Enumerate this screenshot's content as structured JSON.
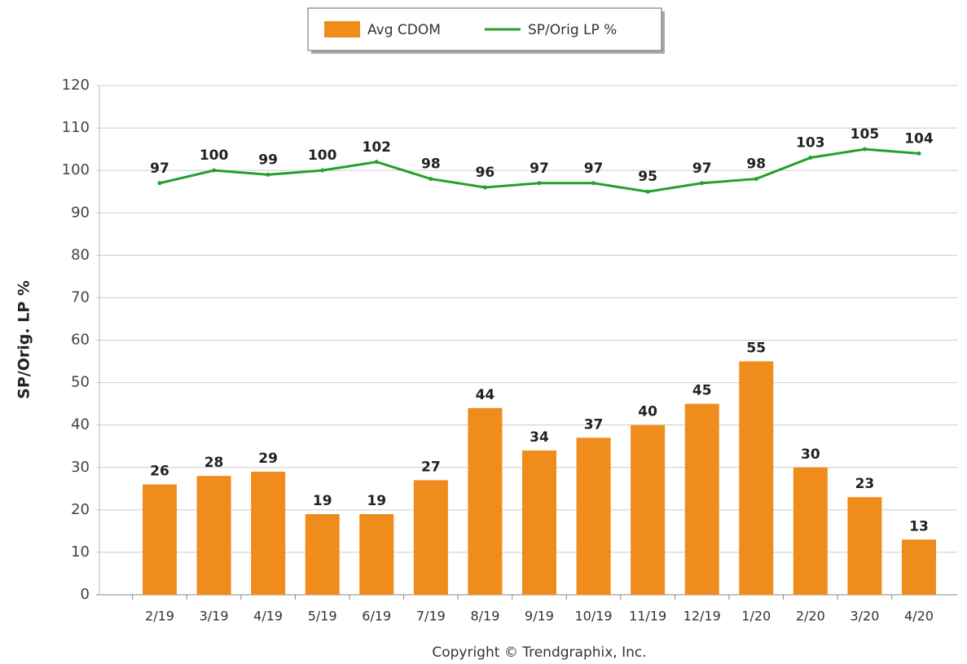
{
  "chart_data": {
    "type": "bar",
    "y_label": "SP/Orig. LP %",
    "footer": "Copyright © Trendgraphix, Inc.",
    "categories": [
      "2/19",
      "3/19",
      "4/19",
      "5/19",
      "6/19",
      "7/19",
      "8/19",
      "9/19",
      "10/19",
      "11/19",
      "12/19",
      "1/20",
      "2/20",
      "3/20",
      "4/20"
    ],
    "series": [
      {
        "name": "Avg CDOM",
        "type": "bar",
        "color": "#ef8c1c",
        "values": [
          26,
          28,
          29,
          19,
          19,
          27,
          44,
          34,
          37,
          40,
          45,
          55,
          30,
          23,
          13
        ]
      },
      {
        "name": "SP/Orig LP %",
        "type": "line",
        "color": "#22a12b",
        "values": [
          97,
          100,
          99,
          100,
          102,
          98,
          96,
          97,
          97,
          95,
          97,
          98,
          103,
          105,
          104
        ]
      }
    ],
    "ylim": [
      0,
      120
    ],
    "yticks": [
      0,
      10,
      20,
      30,
      40,
      50,
      60,
      70,
      80,
      90,
      100,
      110,
      120
    ],
    "grid": true,
    "legend": "top"
  }
}
